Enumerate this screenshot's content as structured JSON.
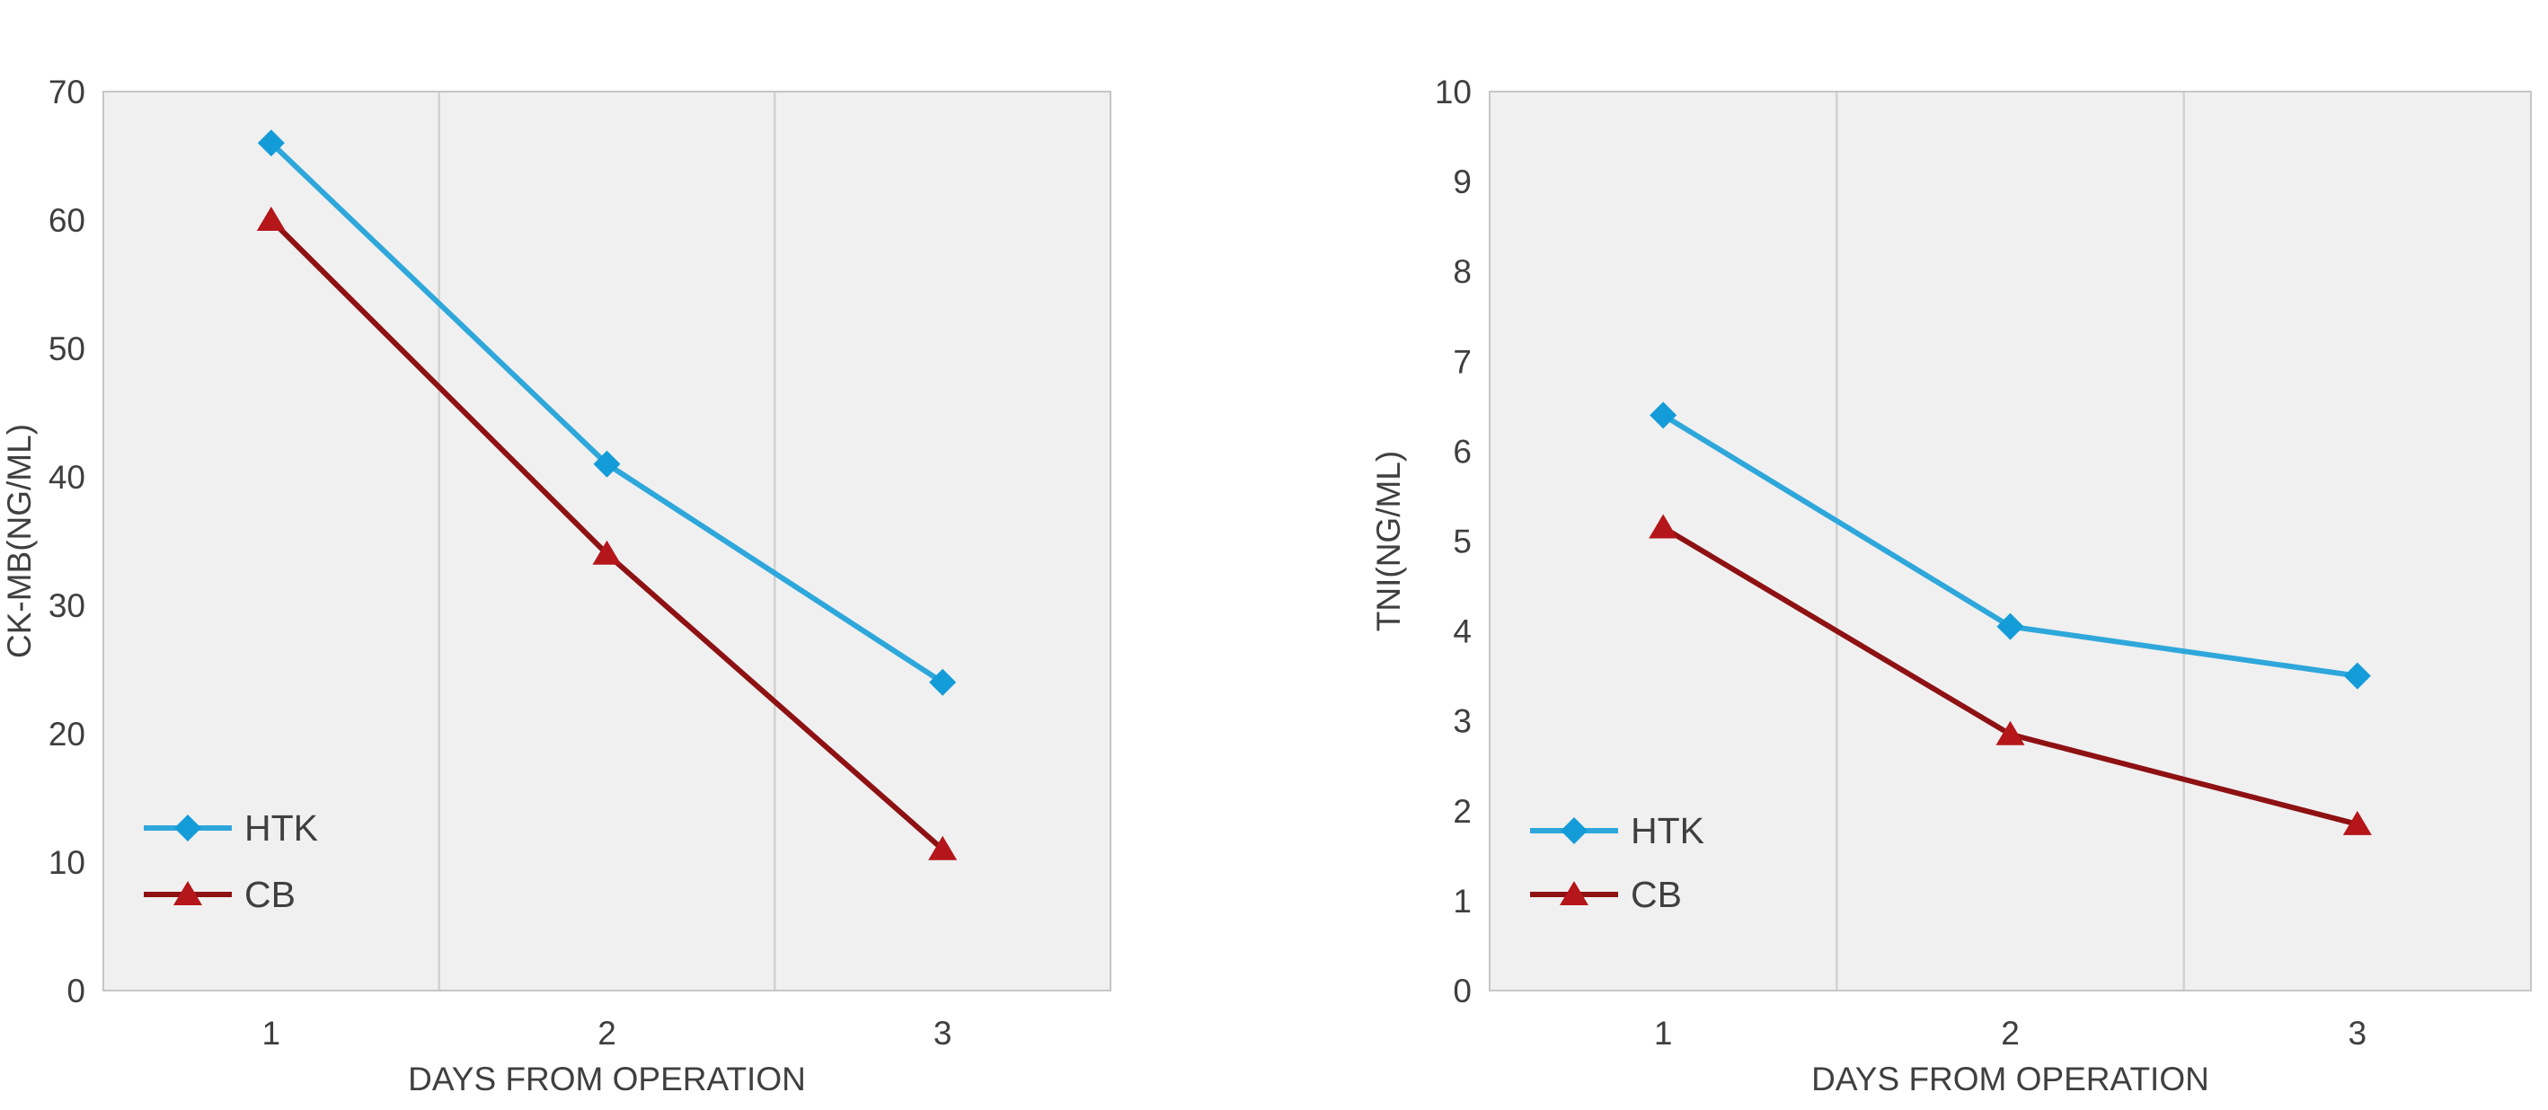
{
  "figure": {
    "background": "#ffffff",
    "description": "Two side-by-side line charts comparing HTK and CB groups over days from operation"
  },
  "style": {
    "plot_bg": "#F0F0F0",
    "plot_border": "#C6C6C6",
    "gridline": "#D2D2D2",
    "text_color": "#3F3F3F",
    "htk_line": "#2EA7DB",
    "htk_marker": "#149CD8",
    "cb_line": "#8E1113",
    "cb_marker": "#B5161A"
  },
  "chart_data": [
    {
      "type": "line",
      "id": "ck-mb",
      "title": "",
      "xlabel": "DAYS FROM OPERATION",
      "ylabel": "CK-MB(NG/ML)",
      "categories": [
        "1",
        "2",
        "3"
      ],
      "ylim": [
        0,
        70
      ],
      "yticks": [
        "0",
        "10",
        "20",
        "30",
        "40",
        "50",
        "60",
        "70"
      ],
      "grid": "vertical category boundaries only",
      "legend_position": "inside lower-left",
      "series": [
        {
          "name": "HTK",
          "marker": "diamond",
          "values": [
            66,
            41,
            24
          ]
        },
        {
          "name": "CB",
          "marker": "triangle",
          "values": [
            60,
            34,
            11
          ]
        }
      ]
    },
    {
      "type": "line",
      "id": "tni",
      "title": "",
      "xlabel": "DAYS FROM OPERATION",
      "ylabel": "TNI(NG/ML)",
      "categories": [
        "1",
        "2",
        "3"
      ],
      "ylim": [
        0,
        10
      ],
      "yticks": [
        "0",
        "1",
        "2",
        "3",
        "4",
        "5",
        "6",
        "7",
        "8",
        "9",
        "10"
      ],
      "grid": "vertical category boundaries only",
      "legend_position": "inside lower-left",
      "series": [
        {
          "name": "HTK",
          "marker": "diamond",
          "values": [
            6.4,
            4.05,
            3.5
          ]
        },
        {
          "name": "CB",
          "marker": "triangle",
          "values": [
            5.15,
            2.85,
            1.85
          ]
        }
      ]
    }
  ]
}
